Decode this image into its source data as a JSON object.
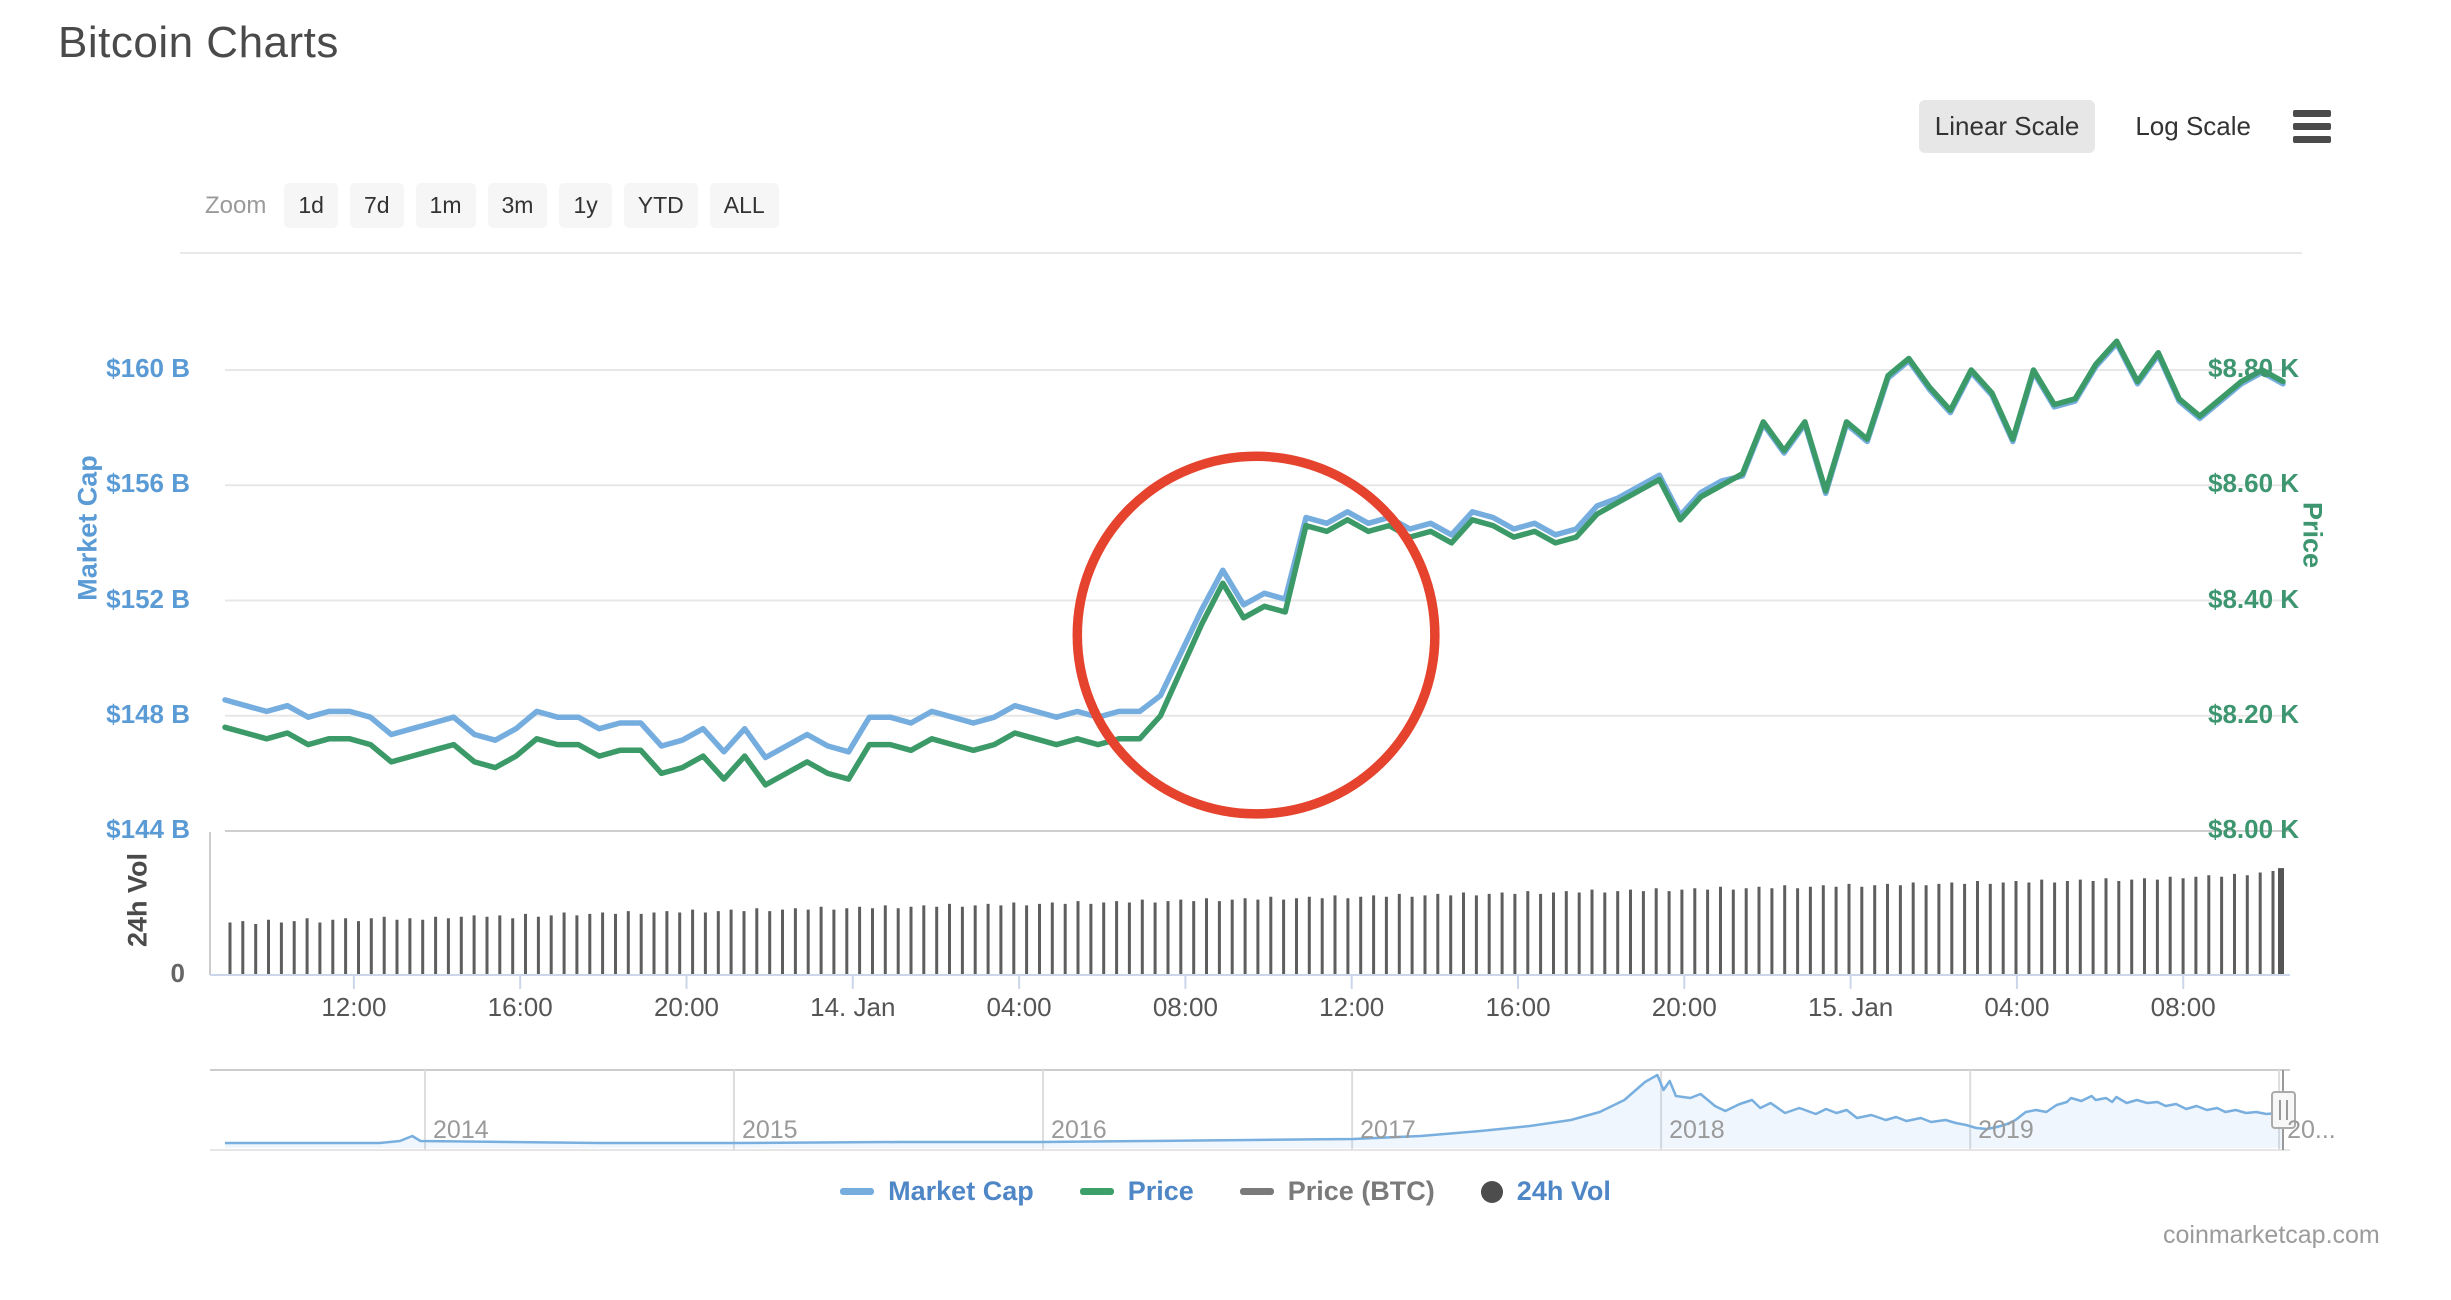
{
  "header": {
    "title": "Bitcoin Charts",
    "scale_toggle": {
      "linear": "Linear Scale",
      "log": "Log Scale",
      "selected": "Linear Scale"
    }
  },
  "toolbar": {
    "zoom_label": "Zoom",
    "buttons": [
      "1d",
      "7d",
      "1m",
      "3m",
      "1y",
      "YTD",
      "ALL"
    ]
  },
  "axes": {
    "market_cap": {
      "title": "Market Cap",
      "labels": [
        "$160 B",
        "$156 B",
        "$152 B",
        "$148 B",
        "$144 B"
      ],
      "min": 144,
      "max": 160,
      "color": "#5B9BD5"
    },
    "price": {
      "title": "Price",
      "labels": [
        "$8.80 K",
        "$8.60 K",
        "$8.40 K",
        "$8.20 K",
        "$8.00 K"
      ],
      "min": 8.0,
      "max": 8.8,
      "color": "#3D9670"
    },
    "volume": {
      "title": "24h Vol",
      "zero_label": "0",
      "color": "#4a4a4a"
    }
  },
  "legend": [
    {
      "label": "Market Cap",
      "marker": "line",
      "color": "#76ADDF",
      "text_color": "#4E86C6"
    },
    {
      "label": "Price",
      "marker": "line",
      "color": "#3DA06B",
      "text_color": "#4E86C6"
    },
    {
      "label": "Price (BTC)",
      "marker": "line",
      "color": "#7A7A7A",
      "text_color": "#7A7A7A"
    },
    {
      "label": "24h Vol",
      "marker": "circle",
      "color": "#4D4D4D",
      "text_color": "#4E86C6"
    }
  ],
  "watermark": "coinmarketcap.com",
  "chart_data": {
    "type": "line",
    "title": "Bitcoin Charts",
    "t_range_hours": [
      0,
      49.5
    ],
    "t_step_hours": 0.5,
    "x_ticks": [
      {
        "t": 3.1,
        "label": "12:00"
      },
      {
        "t": 7.1,
        "label": "16:00"
      },
      {
        "t": 11.1,
        "label": "20:00"
      },
      {
        "t": 15.1,
        "label": "14. Jan"
      },
      {
        "t": 19.1,
        "label": "04:00"
      },
      {
        "t": 23.1,
        "label": "08:00"
      },
      {
        "t": 27.1,
        "label": "12:00"
      },
      {
        "t": 31.1,
        "label": "16:00"
      },
      {
        "t": 35.1,
        "label": "20:00"
      },
      {
        "t": 39.1,
        "label": "15. Jan"
      },
      {
        "t": 43.1,
        "label": "04:00"
      },
      {
        "t": 47.1,
        "label": "08:00"
      }
    ],
    "series": [
      {
        "name": "Price",
        "axis": "price",
        "unit": "$K",
        "color": "#3B9A67",
        "values": [
          8.18,
          8.17,
          8.16,
          8.17,
          8.15,
          8.16,
          8.16,
          8.15,
          8.12,
          8.13,
          8.14,
          8.15,
          8.12,
          8.11,
          8.13,
          8.16,
          8.15,
          8.15,
          8.13,
          8.14,
          8.14,
          8.1,
          8.11,
          8.13,
          8.09,
          8.13,
          8.08,
          8.1,
          8.12,
          8.1,
          8.09,
          8.15,
          8.15,
          8.14,
          8.16,
          8.15,
          8.14,
          8.15,
          8.17,
          8.16,
          8.15,
          8.16,
          8.15,
          8.16,
          8.16,
          8.2,
          8.28,
          8.36,
          8.43,
          8.37,
          8.39,
          8.38,
          8.53,
          8.52,
          8.54,
          8.52,
          8.53,
          8.51,
          8.52,
          8.5,
          8.54,
          8.53,
          8.51,
          8.52,
          8.5,
          8.51,
          8.55,
          8.57,
          8.59,
          8.61,
          8.54,
          8.58,
          8.6,
          8.62,
          8.71,
          8.66,
          8.71,
          8.59,
          8.71,
          8.68,
          8.79,
          8.82,
          8.77,
          8.73,
          8.8,
          8.76,
          8.68,
          8.8,
          8.74,
          8.75,
          8.81,
          8.85,
          8.78,
          8.83,
          8.75,
          8.72,
          8.75,
          8.78,
          8.8,
          8.78
        ]
      },
      {
        "name": "Market Cap",
        "axis": "market_cap",
        "unit": "$B",
        "color": "#76ADDF",
        "values": [
          148.55,
          148.35,
          148.15,
          148.35,
          147.95,
          148.15,
          148.15,
          147.95,
          147.35,
          147.55,
          147.75,
          147.95,
          147.35,
          147.15,
          147.55,
          148.15,
          147.95,
          147.95,
          147.55,
          147.75,
          147.75,
          146.95,
          147.15,
          147.55,
          146.75,
          147.55,
          146.55,
          146.95,
          147.35,
          146.95,
          146.75,
          147.95,
          147.95,
          147.75,
          148.15,
          147.95,
          147.75,
          147.95,
          148.35,
          148.15,
          147.95,
          148.15,
          147.95,
          148.15,
          148.15,
          148.7,
          150.2,
          151.7,
          153.05,
          151.85,
          152.25,
          152.05,
          154.88,
          154.68,
          155.08,
          154.68,
          154.88,
          154.48,
          154.68,
          154.28,
          155.08,
          154.88,
          154.48,
          154.68,
          154.28,
          154.48,
          155.28,
          155.55,
          155.95,
          156.35,
          154.95,
          155.75,
          156.15,
          156.32,
          158.12,
          157.12,
          158.12,
          155.72,
          158.12,
          157.52,
          159.72,
          160.32,
          159.32,
          158.52,
          159.92,
          159.12,
          157.52,
          159.92,
          158.72,
          158.92,
          160.12,
          160.92,
          159.52,
          160.52,
          158.92,
          158.32,
          158.92,
          159.52,
          159.92,
          159.52
        ]
      }
    ],
    "volume": {
      "name": "24h Vol",
      "unit": "relative bar height (axis max unlabeled, baseline 0)",
      "color": "#4d4d4d",
      "values": [
        0.36,
        0.37,
        0.35,
        0.38,
        0.36,
        0.37,
        0.39,
        0.36,
        0.38,
        0.39,
        0.37,
        0.39,
        0.4,
        0.38,
        0.39,
        0.38,
        0.4,
        0.39,
        0.4,
        0.41,
        0.4,
        0.41,
        0.39,
        0.42,
        0.4,
        0.41,
        0.43,
        0.41,
        0.42,
        0.43,
        0.42,
        0.44,
        0.42,
        0.43,
        0.44,
        0.43,
        0.45,
        0.43,
        0.44,
        0.45,
        0.44,
        0.46,
        0.44,
        0.45,
        0.46,
        0.45,
        0.47,
        0.45,
        0.46,
        0.47,
        0.46,
        0.48,
        0.46,
        0.47,
        0.48,
        0.47,
        0.49,
        0.47,
        0.48,
        0.49,
        0.48,
        0.5,
        0.48,
        0.49,
        0.5,
        0.49,
        0.51,
        0.49,
        0.5,
        0.51,
        0.5,
        0.52,
        0.5,
        0.51,
        0.52,
        0.51,
        0.53,
        0.51,
        0.52,
        0.53,
        0.52,
        0.54,
        0.52,
        0.53,
        0.54,
        0.53,
        0.55,
        0.53,
        0.54,
        0.55,
        0.54,
        0.56,
        0.54,
        0.55,
        0.56,
        0.55,
        0.57,
        0.55,
        0.56,
        0.57,
        0.56,
        0.58,
        0.56,
        0.57,
        0.58,
        0.57,
        0.59,
        0.57,
        0.58,
        0.59,
        0.58,
        0.6,
        0.58,
        0.59,
        0.6,
        0.59,
        0.61,
        0.59,
        0.6,
        0.61,
        0.6,
        0.62,
        0.6,
        0.61,
        0.62,
        0.61,
        0.63,
        0.61,
        0.62,
        0.63,
        0.62,
        0.64,
        0.62,
        0.63,
        0.64,
        0.63,
        0.65,
        0.63,
        0.64,
        0.65,
        0.64,
        0.66,
        0.64,
        0.65,
        0.66,
        0.65,
        0.67,
        0.65,
        0.66,
        0.67,
        0.66,
        0.68,
        0.67,
        0.68,
        0.69,
        0.68,
        0.7,
        0.69,
        0.71,
        0.72
      ],
      "final_bar": 0.74
    },
    "annotation": {
      "shape": "circle",
      "color": "#E5432D",
      "center_t_hours": 24.8,
      "center_price": 8.34,
      "radius_hours": 4.3,
      "note": "red circle highlighting the price jump on 14. Jan morning"
    },
    "navigator": {
      "line_color": "#79AFDF",
      "years": [
        {
          "label": "2014",
          "fx": 0.0972
        },
        {
          "label": "2015",
          "fx": 0.2473
        },
        {
          "label": "2016",
          "fx": 0.3975
        },
        {
          "label": "2017",
          "fx": 0.5477
        },
        {
          "label": "2018",
          "fx": 0.6978
        },
        {
          "label": "2019",
          "fx": 0.848
        },
        {
          "label": "20...",
          "fx": 0.9981
        }
      ],
      "points": [
        [
          0,
          0.064
        ],
        [
          0.075,
          0.064
        ],
        [
          0.085,
          0.09
        ],
        [
          0.091,
          0.154
        ],
        [
          0.095,
          0.09
        ],
        [
          0.182,
          0.064
        ],
        [
          0.247,
          0.064
        ],
        [
          0.328,
          0.077
        ],
        [
          0.397,
          0.077
        ],
        [
          0.449,
          0.09
        ],
        [
          0.498,
          0.103
        ],
        [
          0.548,
          0.115
        ],
        [
          0.581,
          0.154
        ],
        [
          0.61,
          0.218
        ],
        [
          0.634,
          0.282
        ],
        [
          0.654,
          0.359
        ],
        [
          0.668,
          0.462
        ],
        [
          0.68,
          0.615
        ],
        [
          0.69,
          0.846
        ],
        [
          0.696,
          0.936
        ],
        [
          0.699,
          0.744
        ],
        [
          0.702,
          0.859
        ],
        [
          0.705,
          0.667
        ],
        [
          0.712,
          0.641
        ],
        [
          0.717,
          0.692
        ],
        [
          0.724,
          0.538
        ],
        [
          0.729,
          0.474
        ],
        [
          0.736,
          0.564
        ],
        [
          0.742,
          0.615
        ],
        [
          0.746,
          0.513
        ],
        [
          0.751,
          0.577
        ],
        [
          0.758,
          0.449
        ],
        [
          0.765,
          0.513
        ],
        [
          0.773,
          0.436
        ],
        [
          0.778,
          0.5
        ],
        [
          0.783,
          0.449
        ],
        [
          0.788,
          0.487
        ],
        [
          0.793,
          0.385
        ],
        [
          0.8,
          0.423
        ],
        [
          0.807,
          0.359
        ],
        [
          0.812,
          0.397
        ],
        [
          0.817,
          0.346
        ],
        [
          0.824,
          0.385
        ],
        [
          0.829,
          0.333
        ],
        [
          0.836,
          0.359
        ],
        [
          0.841,
          0.321
        ],
        [
          0.846,
          0.295
        ],
        [
          0.851,
          0.256
        ],
        [
          0.856,
          0.244
        ],
        [
          0.861,
          0.269
        ],
        [
          0.866,
          0.308
        ],
        [
          0.87,
          0.359
        ],
        [
          0.875,
          0.462
        ],
        [
          0.88,
          0.487
        ],
        [
          0.885,
          0.462
        ],
        [
          0.89,
          0.551
        ],
        [
          0.895,
          0.59
        ],
        [
          0.897,
          0.641
        ],
        [
          0.902,
          0.603
        ],
        [
          0.907,
          0.667
        ],
        [
          0.909,
          0.615
        ],
        [
          0.914,
          0.641
        ],
        [
          0.917,
          0.59
        ],
        [
          0.919,
          0.654
        ],
        [
          0.924,
          0.577
        ],
        [
          0.929,
          0.615
        ],
        [
          0.934,
          0.577
        ],
        [
          0.939,
          0.59
        ],
        [
          0.943,
          0.538
        ],
        [
          0.948,
          0.564
        ],
        [
          0.953,
          0.5
        ],
        [
          0.958,
          0.538
        ],
        [
          0.963,
          0.487
        ],
        [
          0.968,
          0.513
        ],
        [
          0.972,
          0.462
        ],
        [
          0.977,
          0.487
        ],
        [
          0.982,
          0.449
        ],
        [
          0.987,
          0.462
        ],
        [
          0.992,
          0.436
        ],
        [
          0.997,
          0.449
        ],
        [
          1,
          0.423
        ]
      ]
    }
  }
}
